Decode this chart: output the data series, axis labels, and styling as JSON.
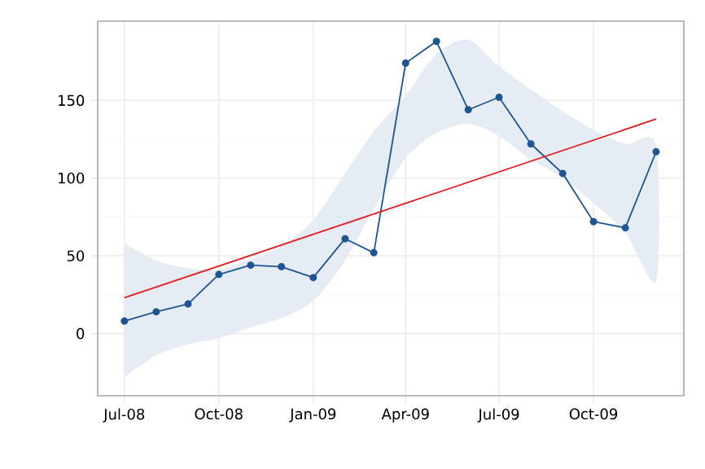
{
  "chart_data": {
    "type": "line",
    "x": [
      "2008-07-01",
      "2008-08-01",
      "2008-09-01",
      "2008-10-01",
      "2008-11-01",
      "2008-12-01",
      "2009-01-01",
      "2009-02-01",
      "2009-03-01",
      "2009-04-01",
      "2009-05-01",
      "2009-06-01",
      "2009-07-01",
      "2009-08-01",
      "2009-09-01",
      "2009-10-01",
      "2009-11-01",
      "2009-12-01"
    ],
    "series": [
      {
        "color": "#1f5592",
        "marker": "circle",
        "values": [
          8,
          14,
          19,
          38,
          44,
          43,
          36,
          61,
          52,
          174,
          188,
          144,
          152,
          122,
          103,
          72,
          68,
          117
        ],
        "lower": [
          -28,
          -14,
          -7,
          -3,
          4,
          10,
          21,
          47,
          80,
          113,
          129,
          135,
          127,
          112,
          100,
          84,
          65,
          34
        ],
        "upper": [
          58,
          47,
          42,
          41,
          48,
          56,
          73,
          103,
          130,
          153,
          180,
          189,
          172,
          157,
          143,
          131,
          122,
          121
        ]
      },
      {
        "type": "line",
        "color": "#e41a1c",
        "marker": "none",
        "x": [
          "2008-07-01",
          "2009-12-01"
        ],
        "values": [
          23,
          138
        ]
      }
    ],
    "xlim": [
      "2008-06-05",
      "2009-12-28"
    ],
    "ylim": [
      -40,
      201
    ],
    "xticks": [
      {
        "value": "2008-07-01",
        "label": "Jul-08"
      },
      {
        "value": "2008-10-01",
        "label": "Oct-08"
      },
      {
        "value": "2009-01-01",
        "label": "Jan-09"
      },
      {
        "value": "2009-04-01",
        "label": "Apr-09"
      },
      {
        "value": "2009-07-01",
        "label": "Jul-09"
      },
      {
        "value": "2009-10-01",
        "label": "Oct-09"
      }
    ],
    "yticks": [
      0,
      50,
      100,
      150
    ],
    "grid": true
  }
}
